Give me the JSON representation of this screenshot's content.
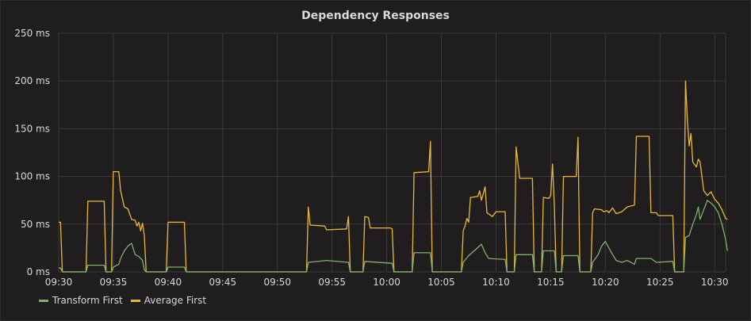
{
  "panel": {
    "title": "Dependency Responses"
  },
  "colors": {
    "background": "#1f1d1d",
    "grid": "#3a3a3a",
    "text": "#d8d9da",
    "transform": "#7eb26d",
    "average": "#eab839"
  },
  "chart_data": {
    "type": "line",
    "title": "Dependency Responses",
    "xlabel": "",
    "ylabel": "",
    "grid": true,
    "legend_position": "bottom-left",
    "xlim": [
      "09:30",
      "10:31"
    ],
    "ylim": [
      0,
      250
    ],
    "x_ticks": [
      "09:30",
      "09:35",
      "09:40",
      "09:45",
      "09:50",
      "09:55",
      "10:00",
      "10:05",
      "10:10",
      "10:15",
      "10:20",
      "10:25",
      "10:30"
    ],
    "y_ticks": [
      "0 ms",
      "50 ms",
      "100 ms",
      "150 ms",
      "200 ms",
      "250 ms"
    ],
    "series": [
      {
        "name": "Average First",
        "color": "#eab839",
        "points": [
          [
            "09:30:00",
            52
          ],
          [
            "09:30:10",
            52
          ],
          [
            "09:30:20",
            0
          ],
          [
            "09:32:30",
            0
          ],
          [
            "09:32:40",
            74
          ],
          [
            "09:34:10",
            74
          ],
          [
            "09:34:20",
            0
          ],
          [
            "09:34:50",
            0
          ],
          [
            "09:35:00",
            105
          ],
          [
            "09:35:30",
            105
          ],
          [
            "09:35:40",
            85
          ],
          [
            "09:36:00",
            68
          ],
          [
            "09:36:20",
            66
          ],
          [
            "09:36:40",
            55
          ],
          [
            "09:37:00",
            54
          ],
          [
            "09:37:10",
            48
          ],
          [
            "09:37:20",
            52
          ],
          [
            "09:37:30",
            43
          ],
          [
            "09:37:40",
            51
          ],
          [
            "09:37:50",
            38
          ],
          [
            "09:38:00",
            0
          ],
          [
            "09:39:50",
            0
          ],
          [
            "09:40:00",
            52
          ],
          [
            "09:41:30",
            52
          ],
          [
            "09:41:40",
            0
          ],
          [
            "09:52:40",
            0
          ],
          [
            "09:52:50",
            68
          ],
          [
            "09:53:00",
            49
          ],
          [
            "09:54:20",
            48
          ],
          [
            "09:54:30",
            44
          ],
          [
            "09:56:20",
            45
          ],
          [
            "09:56:30",
            58
          ],
          [
            "09:56:40",
            0
          ],
          [
            "09:57:50",
            0
          ],
          [
            "09:58:00",
            58
          ],
          [
            "09:58:20",
            57
          ],
          [
            "09:58:30",
            46
          ],
          [
            "10:00:20",
            46
          ],
          [
            "10:00:30",
            45
          ],
          [
            "10:00:40",
            0
          ],
          [
            "10:02:20",
            0
          ],
          [
            "10:02:30",
            104
          ],
          [
            "10:03:50",
            105
          ],
          [
            "10:04:00",
            137
          ],
          [
            "10:04:10",
            0
          ],
          [
            "10:06:50",
            0
          ],
          [
            "10:07:00",
            43
          ],
          [
            "10:07:10",
            48
          ],
          [
            "10:07:20",
            56
          ],
          [
            "10:07:30",
            52
          ],
          [
            "10:07:40",
            78
          ],
          [
            "10:08:20",
            79
          ],
          [
            "10:08:30",
            85
          ],
          [
            "10:08:40",
            75
          ],
          [
            "10:09:00",
            89
          ],
          [
            "10:09:10",
            62
          ],
          [
            "10:09:40",
            58
          ],
          [
            "10:10:00",
            63
          ],
          [
            "10:10:50",
            63
          ],
          [
            "10:11:00",
            0
          ],
          [
            "10:11:40",
            0
          ],
          [
            "10:11:50",
            131
          ],
          [
            "10:12:10",
            98
          ],
          [
            "10:13:20",
            98
          ],
          [
            "10:13:30",
            0
          ],
          [
            "10:14:10",
            0
          ],
          [
            "10:14:20",
            78
          ],
          [
            "10:14:50",
            77
          ],
          [
            "10:15:00",
            80
          ],
          [
            "10:15:10",
            113
          ],
          [
            "10:15:20",
            70
          ],
          [
            "10:15:30",
            0
          ],
          [
            "10:16:00",
            0
          ],
          [
            "10:16:10",
            100
          ],
          [
            "10:17:20",
            100
          ],
          [
            "10:17:30",
            141
          ],
          [
            "10:17:40",
            0
          ],
          [
            "10:18:40",
            0
          ],
          [
            "10:18:50",
            62
          ],
          [
            "10:19:00",
            66
          ],
          [
            "10:19:40",
            65
          ],
          [
            "10:19:50",
            63
          ],
          [
            "10:20:10",
            64
          ],
          [
            "10:20:20",
            62
          ],
          [
            "10:20:40",
            67
          ],
          [
            "10:21:00",
            61
          ],
          [
            "10:21:30",
            63
          ],
          [
            "10:22:00",
            68
          ],
          [
            "10:22:40",
            70
          ],
          [
            "10:22:50",
            142
          ],
          [
            "10:24:00",
            142
          ],
          [
            "10:24:10",
            62
          ],
          [
            "10:24:40",
            62
          ],
          [
            "10:24:50",
            59
          ],
          [
            "10:26:10",
            59
          ],
          [
            "10:26:20",
            0
          ],
          [
            "10:27:10",
            0
          ],
          [
            "10:27:20",
            200
          ],
          [
            "10:27:30",
            160
          ],
          [
            "10:27:40",
            132
          ],
          [
            "10:27:50",
            145
          ],
          [
            "10:28:00",
            115
          ],
          [
            "10:28:20",
            110
          ],
          [
            "10:28:30",
            118
          ],
          [
            "10:28:40",
            115
          ],
          [
            "10:29:00",
            85
          ],
          [
            "10:29:20",
            80
          ],
          [
            "10:29:40",
            84
          ],
          [
            "10:30:00",
            76
          ],
          [
            "10:30:20",
            72
          ],
          [
            "10:30:40",
            65
          ],
          [
            "10:31:00",
            56
          ],
          [
            "10:31:10",
            55
          ]
        ]
      },
      {
        "name": "Transform First",
        "color": "#7eb26d",
        "points": [
          [
            "09:30:00",
            4
          ],
          [
            "09:30:10",
            4
          ],
          [
            "09:30:20",
            0
          ],
          [
            "09:32:30",
            0
          ],
          [
            "09:32:40",
            7
          ],
          [
            "09:34:10",
            7
          ],
          [
            "09:34:20",
            0
          ],
          [
            "09:34:50",
            0
          ],
          [
            "09:35:00",
            5
          ],
          [
            "09:35:30",
            8
          ],
          [
            "09:35:40",
            14
          ],
          [
            "09:36:00",
            22
          ],
          [
            "09:36:20",
            27
          ],
          [
            "09:36:40",
            30
          ],
          [
            "09:37:00",
            18
          ],
          [
            "09:37:20",
            16
          ],
          [
            "09:37:40",
            12
          ],
          [
            "09:37:50",
            2
          ],
          [
            "09:38:00",
            0
          ],
          [
            "09:39:50",
            0
          ],
          [
            "09:40:00",
            5
          ],
          [
            "09:41:30",
            5
          ],
          [
            "09:41:40",
            0
          ],
          [
            "09:52:40",
            0
          ],
          [
            "09:52:50",
            10
          ],
          [
            "09:54:30",
            12
          ],
          [
            "09:56:30",
            10
          ],
          [
            "09:56:40",
            0
          ],
          [
            "09:57:50",
            0
          ],
          [
            "09:58:00",
            11
          ],
          [
            "10:00:30",
            9
          ],
          [
            "10:00:40",
            0
          ],
          [
            "10:02:20",
            0
          ],
          [
            "10:02:30",
            20
          ],
          [
            "10:04:00",
            20
          ],
          [
            "10:04:10",
            0
          ],
          [
            "10:06:50",
            0
          ],
          [
            "10:07:00",
            10
          ],
          [
            "10:07:30",
            17
          ],
          [
            "10:08:00",
            22
          ],
          [
            "10:08:40",
            29
          ],
          [
            "10:09:00",
            20
          ],
          [
            "10:09:20",
            14
          ],
          [
            "10:10:50",
            13
          ],
          [
            "10:11:00",
            0
          ],
          [
            "10:11:40",
            0
          ],
          [
            "10:11:50",
            18
          ],
          [
            "10:13:20",
            18
          ],
          [
            "10:13:30",
            0
          ],
          [
            "10:14:10",
            0
          ],
          [
            "10:14:20",
            22
          ],
          [
            "10:15:20",
            22
          ],
          [
            "10:15:30",
            0
          ],
          [
            "10:16:00",
            0
          ],
          [
            "10:16:10",
            17
          ],
          [
            "10:17:30",
            17
          ],
          [
            "10:17:40",
            0
          ],
          [
            "10:18:40",
            0
          ],
          [
            "10:18:50",
            10
          ],
          [
            "10:19:20",
            18
          ],
          [
            "10:19:40",
            27
          ],
          [
            "10:20:00",
            32
          ],
          [
            "10:20:20",
            25
          ],
          [
            "10:20:40",
            18
          ],
          [
            "10:21:00",
            12
          ],
          [
            "10:21:30",
            10
          ],
          [
            "10:22:00",
            12
          ],
          [
            "10:22:40",
            8
          ],
          [
            "10:22:50",
            14
          ],
          [
            "10:24:10",
            14
          ],
          [
            "10:24:40",
            10
          ],
          [
            "10:26:10",
            11
          ],
          [
            "10:26:20",
            0
          ],
          [
            "10:27:10",
            0
          ],
          [
            "10:27:20",
            36
          ],
          [
            "10:27:40",
            38
          ],
          [
            "10:28:00",
            50
          ],
          [
            "10:28:20",
            60
          ],
          [
            "10:28:30",
            68
          ],
          [
            "10:28:40",
            55
          ],
          [
            "10:29:00",
            65
          ],
          [
            "10:29:20",
            75
          ],
          [
            "10:29:40",
            72
          ],
          [
            "10:30:00",
            68
          ],
          [
            "10:30:20",
            62
          ],
          [
            "10:30:40",
            50
          ],
          [
            "10:31:00",
            34
          ],
          [
            "10:31:10",
            22
          ]
        ]
      }
    ]
  },
  "legend": [
    {
      "label": "Transform First",
      "color": "#7eb26d"
    },
    {
      "label": "Average First",
      "color": "#eab839"
    }
  ]
}
